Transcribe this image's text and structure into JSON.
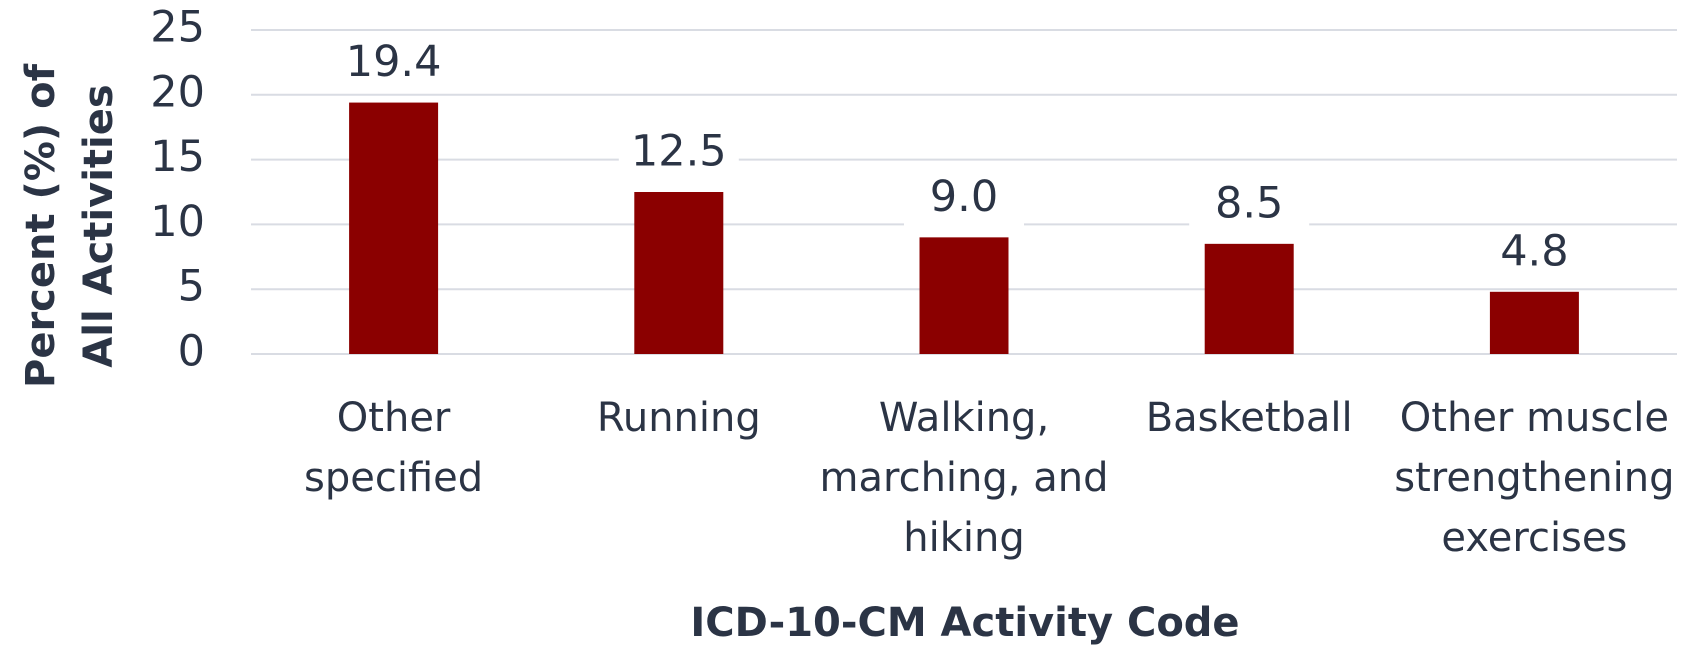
{
  "chart_data": {
    "type": "bar",
    "x_label": "ICD-10-CM Activity Code",
    "y_label": "Percent (%) of All Activities",
    "categories": [
      "Other specified",
      "Running",
      "Walking, marching, and hiking",
      "Basketball",
      "Other muscle strengthening exercises"
    ],
    "values": [
      19.4,
      12.5,
      9.0,
      8.5,
      4.8
    ],
    "value_labels": [
      "19.4",
      "12.5",
      "9.0",
      "8.5",
      "4.8"
    ],
    "color": "#8b0000",
    "ylim": [
      0,
      25
    ],
    "yticks": [
      0,
      5,
      10,
      15,
      20,
      25
    ],
    "grid": true
  }
}
